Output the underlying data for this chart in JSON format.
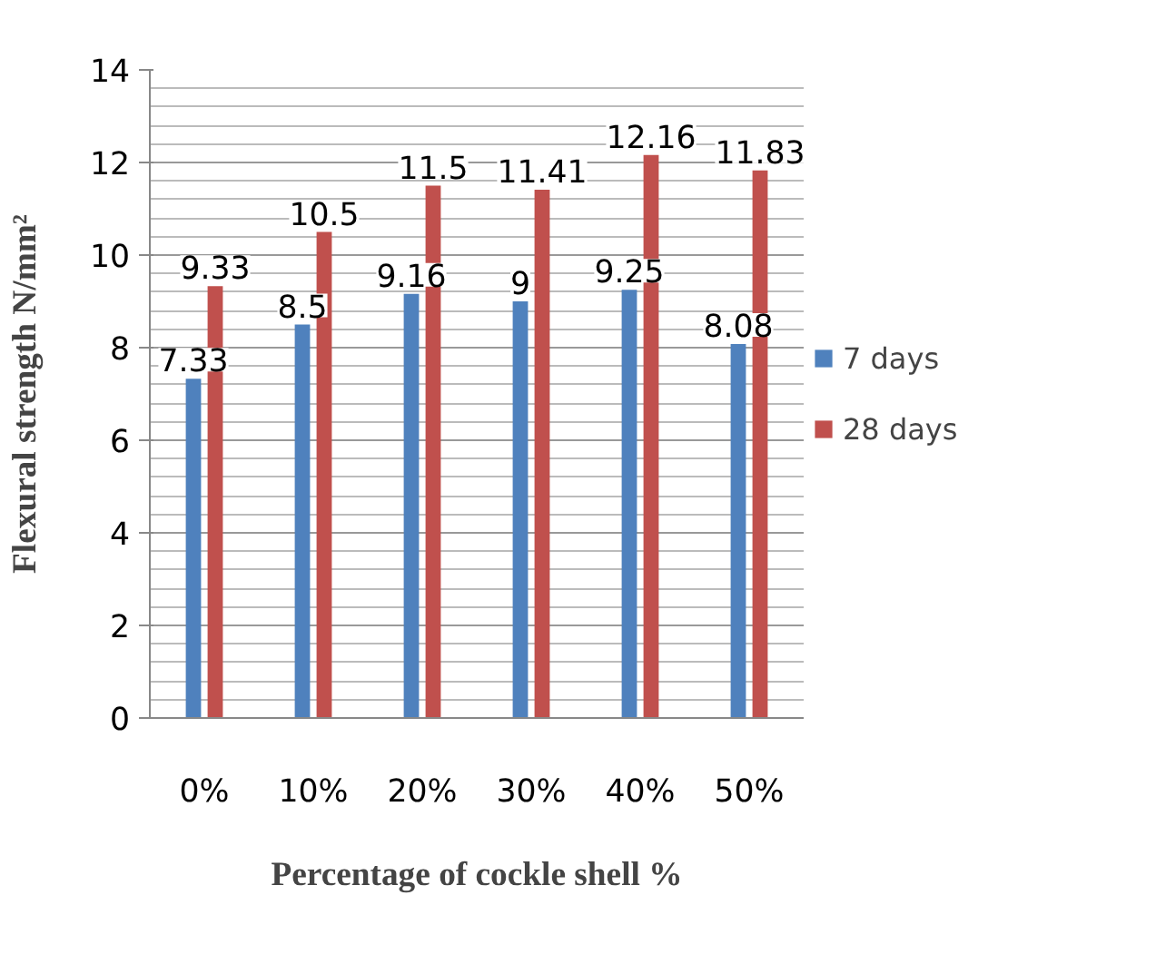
{
  "chart_data": {
    "type": "bar",
    "xlabel": "Percentage of cockle shell %",
    "ylabel": "Flexural strength N/mm²",
    "categories": [
      "0%",
      "10%",
      "20%",
      "30%",
      "40%",
      "50%"
    ],
    "series": [
      {
        "name": "7 days",
        "color": "#4f81bd",
        "values": [
          7.33,
          8.5,
          9.16,
          9,
          9.25,
          8.08
        ]
      },
      {
        "name": "28 days",
        "color": "#c0504d",
        "values": [
          9.33,
          10.5,
          11.5,
          11.41,
          12.16,
          11.83
        ]
      }
    ],
    "ylim": [
      0,
      14
    ],
    "yticks": [
      0,
      2,
      4,
      6,
      8,
      10,
      12,
      14
    ],
    "grid": "y",
    "legend": "right",
    "data_labels": true
  }
}
